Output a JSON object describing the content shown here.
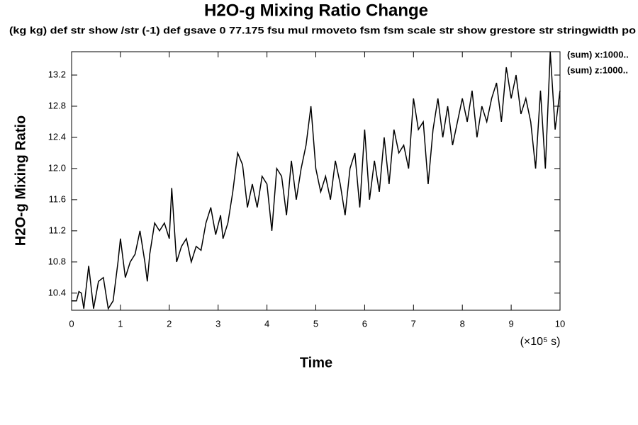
{
  "chart_data": {
    "type": "line",
    "title": "H2O-g Mixing Ratio Change",
    "subtitle": "(kg kg) def str show /str (-1) def gsave 0 77.175 fsu mul rmoveto fsm fsm scale str show grestore str stringwidth po",
    "x_label": "Time",
    "x_unit": "(×10⁵ s)",
    "y_label": "H2O-g Mixing Ratio",
    "annotations": [
      "(sum) x:1000..",
      "(sum) z:1000.."
    ],
    "xlim": [
      0,
      10
    ],
    "xticks": [
      0,
      1,
      2,
      3,
      4,
      5,
      6,
      7,
      8,
      9,
      10
    ],
    "ylim": [
      10.18,
      13.5
    ],
    "yticks": [
      10.4,
      10.8,
      11.2,
      11.6,
      {
        "value": 12,
        "label": "12.0"
      },
      12.4,
      12.8,
      13.2
    ],
    "color": "#000000",
    "x": [
      0,
      0.1,
      0.15,
      0.2,
      0.25,
      0.35,
      0.45,
      0.55,
      0.65,
      0.75,
      0.85,
      0.95,
      1.0,
      1.1,
      1.2,
      1.3,
      1.4,
      1.5,
      1.55,
      1.6,
      1.7,
      1.8,
      1.9,
      2.0,
      2.05,
      2.15,
      2.25,
      2.35,
      2.45,
      2.55,
      2.65,
      2.75,
      2.85,
      2.95,
      3.05,
      3.1,
      3.2,
      3.3,
      3.4,
      3.5,
      3.6,
      3.7,
      3.8,
      3.9,
      4.0,
      4.1,
      4.2,
      4.3,
      4.4,
      4.5,
      4.6,
      4.7,
      4.8,
      4.9,
      5.0,
      5.1,
      5.2,
      5.3,
      5.4,
      5.5,
      5.6,
      5.7,
      5.8,
      5.9,
      6.0,
      6.1,
      6.2,
      6.3,
      6.4,
      6.5,
      6.6,
      6.7,
      6.8,
      6.9,
      7.0,
      7.1,
      7.2,
      7.3,
      7.4,
      7.5,
      7.6,
      7.7,
      7.8,
      7.9,
      8.0,
      8.1,
      8.2,
      8.3,
      8.4,
      8.5,
      8.6,
      8.7,
      8.8,
      8.9,
      9.0,
      9.1,
      9.2,
      9.3,
      9.4,
      9.5,
      9.6,
      9.7,
      9.8,
      9.9,
      10.0
    ],
    "values": [
      10.3,
      10.3,
      10.42,
      10.4,
      10.2,
      10.75,
      10.2,
      10.55,
      10.6,
      10.2,
      10.3,
      10.8,
      11.1,
      10.6,
      10.8,
      10.9,
      11.2,
      10.8,
      10.55,
      10.9,
      11.3,
      11.2,
      11.3,
      11.1,
      11.75,
      10.8,
      11.0,
      11.1,
      10.8,
      11.0,
      10.95,
      11.3,
      11.5,
      11.15,
      11.4,
      11.1,
      11.3,
      11.7,
      12.2,
      12.05,
      11.5,
      11.8,
      11.5,
      11.9,
      11.8,
      11.2,
      12.0,
      11.9,
      11.4,
      12.1,
      11.6,
      12.0,
      12.3,
      12.8,
      12.0,
      11.7,
      11.9,
      11.6,
      12.1,
      11.8,
      11.4,
      12.0,
      12.2,
      11.5,
      12.5,
      11.6,
      12.1,
      11.7,
      12.4,
      11.8,
      12.5,
      12.2,
      12.3,
      12.0,
      12.9,
      12.5,
      12.6,
      11.8,
      12.5,
      12.9,
      12.4,
      12.8,
      12.3,
      12.6,
      12.9,
      12.6,
      13.0,
      12.4,
      12.8,
      12.6,
      12.9,
      13.1,
      12.6,
      13.3,
      12.9,
      13.2,
      12.7,
      12.9,
      12.6,
      12.0,
      13.0,
      12.0,
      13.5,
      12.5,
      13.0
    ]
  }
}
